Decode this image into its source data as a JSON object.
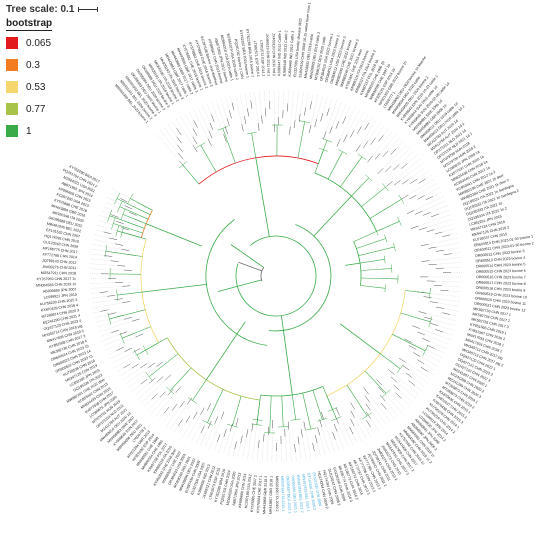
{
  "scale": {
    "label": "Tree scale: 0.1"
  },
  "legend": {
    "title": "bootstrap",
    "items": [
      {
        "label": "0.065",
        "color": "#e31a1c"
      },
      {
        "label": "0.3",
        "color": "#f47b20"
      },
      {
        "label": "0.53",
        "color": "#f5d76e"
      },
      {
        "label": "0.77",
        "color": "#a8c34a"
      },
      {
        "label": "1",
        "color": "#3aab48"
      }
    ]
  },
  "tree": {
    "branch_color": "#3aab48",
    "highlight_color": "#3da9e0",
    "labels": [
      "MW491930 BEL 2020 bovine 1",
      "MW491931 BEL 2020 bovine 2",
      "MW491932 BEL 2020 bovine 3",
      "OK095683 DEU 2020 bovine 1",
      "OK095684 DEU 2020 bovine 2",
      "OK095685 DEU 2020 bovine 3",
      "MK920191 ITA 2018 bovine 1",
      "MK920192 ITA 2018 bovine 2",
      "MK920193 ITA 2018 bovine 3",
      "MH443864 GBR 2017 cattle 1",
      "MH443865 GBR 2017 cattle 2",
      "MH443866 GBR 2017 cattle 3",
      "KY576881 CHE 2016 bovine 1",
      "KY576882 CHE 2016 bovine 2",
      "KY576883 CHE 2016 bovine 3",
      "KC297198 Bovine viral diarrhea",
      "KF896607 CHN 2013 bovine",
      "AB871953 JPN 2012 bovine",
      "MZ664318 USA 2019 cattle 1",
      "MZ664319 USA 2019 cattle 2",
      "PQ291702 bovine 2 CHN",
      "KY762287 BRA 2015 bovine 1",
      "KY762288 BRA 2015 bovine 2",
      "LT902571 ESP 2014 1",
      "LT902572 ESP 2014 2",
      "JX469119 CHN 2011 Ind 1",
      "JX469120 CHN 2011 Ind 2",
      "KJ689447 IND 2012 Cattle 1",
      "KJ689448 IND 2012 Cattle 2",
      "KJ689449 IND 2012 Cattle 3",
      "EU327505 USA border disease 4623",
      "EU697429 CHN 2008 10-15 swine fever virus 1",
      "MN428892 DEU 2019 cattle",
      "MN428893 DEU 2019 cattle 2",
      "MT858102 DEU 2020 cattle",
      "OR384010 USA 2022 bovine 1",
      "OR384011 USA 2022 bovine 2",
      "OR384012 USA 2022 bovine 3",
      "MW883245 CHE 2021 bovine",
      "MW883246 CHE 2021 bovine 2",
      "KT951841 CHE 2015 deer",
      "KR866116 ITA 2014 bovine",
      "KR866117 ITA 2014 bovine 2",
      "KX987157 POL 2016 1b",
      "MH806543 CHE 1995 1b",
      "MN938590 CHE 1997 1b",
      "KF925191 ESP 2013 1b",
      "KF501393 GBR 2012 bovine 1h",
      "LT600777 1",
      "MW459003 DEU 2020 bovine 1h Marche",
      "MW459004 DEU 2020 cattle",
      "MW459005 DEU 2020 bovine 2",
      "KY849643 SVN 2015-10-23 cattle 1",
      "KY849644 SVN 2015 cattle 1d",
      "KY849645 SVN 2016-02-09 cattle 1d",
      "MW458981 SWE 2006 1d",
      "MW458982 GBR 2006 1d",
      "MW459012 DEU 2019 cattle 1d",
      "MW459013 DEU 2019 cattle 1d 2",
      "MZ412783 AUT 2020 1d",
      "MZ412784 AUT 2020 1d 2",
      "OP373331 NLD 2021 1d",
      "OP373332 NLD 2021 1d 2",
      "MT079789 HUN 2018",
      "MT079790 HUN 2018 2",
      "LC089875 JPN 1999 1a",
      "KX577637 CHN 2016 1a",
      "MN824438 CHN 2018 1a",
      "KC853440 CHN 2012 1a",
      "KC853441 CHN 2012 1a 2",
      "MW882199 CHE 2021 1k deer",
      "MW882200 CHE 2021 1k deer 2",
      "OQ195331 ITA 2022 1e Sardegna",
      "OQ195332 ITA 2022 1e Sardegna 2",
      "OQ195333 ITA 2022 1e",
      "OQ195334 ITA 2022 1e 2",
      "LC852291 JPN 2015",
      "MK947124 CHN 2018",
      "MK947125 CHN 2018 2",
      "KU726537 CHN 2015",
      "OR600510 CHN 2023-01-30 bovine 1",
      "OR600511 CHN 2023-01-30 bovine 2",
      "OR600512 CHN 2023 bovine 3",
      "OR600513 CHN 2023 bovine 4",
      "OR600514 CHN 2023 bovine 5",
      "OR600515 CHN 2023 bovine 6",
      "OR600516 CHN 2023 bovine 7",
      "OR600517 CHN 2023 bovine 8",
      "OR600518 CHN 2023 bovine 9",
      "OR600519 CHN 2023 bovine 10",
      "OR600520 CHN 2023 bovine 11",
      "OR600521 CHN 2023 bovine 12",
      "MK592733 CHN 2017 1",
      "MK592734 CHN 2017 2",
      "MK592735 CHN 2017 3",
      "KY851566 CHN 2016 1",
      "KY851567 CHN 2016 2",
      "MN417933 CHN 2018 1",
      "MN417934 CHN 2018 2",
      "MH345712 CHN 2017 pig",
      "MH345713 CHN 2017 pig 2",
      "OQ427120 CHN 2022 1",
      "OQ427121 CHN 2022 2",
      "OQ427122 CHN 2022 3",
      "MZ241287 CHN 2020 1",
      "MZ241288 CHN 2020 2",
      "MZ241289 CHN 2020 3",
      "MT269872 CHN 2019 1",
      "MT269873 CHN 2019 2",
      "KX870436 CHN 2015 1",
      "KX870437 CHN 2015 2",
      "KX870438 CHN 2015 3",
      "KU756228 CHN 2014 1",
      "KU756229 CHN 2014 2",
      "LC099919 JPN 2014",
      "LC099920 JPN 2014 2",
      "AB300691 JPN 2006",
      "AB300692 JPN 2006 2",
      "MN064581 CHN 2018 1c",
      "MN064582 CHN 2018 1c 2",
      "KY767958 CHN 2016 1c",
      "MG547908 CHN 2017",
      "MG547909 CHN 2017 2",
      "MG547910 CHN 2017 3",
      "JN400273 CHN 2010",
      "JN400274 CHN 2010 2",
      "JQ799141 CHN 2011",
      "JQ799142 CHN 2011 2",
      "KF772785 CHN 2013 1",
      "KF772786 CHN 2013 2",
      "KF772787 CHN 2013 3",
      "MF166772 CHN 2016",
      "MF166773 CHN 2016 2",
      "MF166774 CHN 2016 3",
      "GU120246 CHN 2008",
      "GU120247 CHN 2008 2",
      "HQ174293 CHN 2009",
      "HQ174294 CHN 2009 2",
      "EF101530 CHN 2006",
      "EF101531 CHN 2006 2",
      "MW491933 BEL 2021 1",
      "MW491934 BEL 2021 2",
      "OK095686 DEU 2021 1",
      "OK095687 DEU 2021 2",
      "MK920194 ITA 2019 1",
      "MK920195 ITA 2019 2",
      "MH443867 GBR 2018 1",
      "MH443868 GBR 2018 2",
      "KY576884 CHE 2017 1",
      "KY576885 CHE 2017 2",
      "KC297199 USA 2012",
      "KF896608 CHN 2014",
      "AB871954 JPN 2013",
      "MZ664320 USA 2020",
      "PQ291703 CHN 2024",
      "KY762289 BRA 2016",
      "LT902573 ESP 2015",
      "JX469121 CHN 2012",
      "KJ689450 IND 2013",
      "EU327506 USA 2007",
      "EU697430 CHN 2009",
      "MN428894 DEU 2020",
      "MT858103 DEU 2021",
      "OR384013 USA 2023",
      "MW883247 CHE 2022",
      "KT951842 CHE 2016 deer",
      "KR866118 ITA 2015",
      "KX987158 POL 2017",
      "MH806544 CHE 1996",
      "MN938591 CHE 1998",
      "KF925192 ESP 2014",
      "KF501394 GBR 2013",
      "LT600778 2",
      "MW459006 DEU 2021",
      "KY849646 SVN 2017",
      "MW458983 SWE 2007",
      "MW459014 DEU 2020 1d",
      "MZ412785 AUT 2021",
      "OP373333 NLD 2022",
      "MT079791 HUN 2019",
      "LC089876 JPN 2000",
      "KX577638 CHN 2017",
      "MN824439 CHN 2019",
      "KC853442 CHN 2013",
      "MW882201 CHE 2022 deer",
      "OQ195335 ITA 2023",
      "LC852292 JPN 2016",
      "MK947126 CHN 2019",
      "KU726538 CHN 2016",
      "OR600522 CHN 2023 13",
      "OR600523 CHN 2023 14",
      "OR600524 CHN 2023 15",
      "MK592736 CHN 2018 4",
      "KY851568 CHN 2017 3",
      "MN417935 CHN 2019 3",
      "MH345714 CHN 2018 pig",
      "OQ427123 CHN 2023 4",
      "MZ241290 CHN 2021 4",
      "MT269874 CHN 2020 3",
      "KX870439 CHN 2016 4",
      "KU756230 CHN 2015 3",
      "LC099921 JPN 2015",
      "AB300693 JPN 2007",
      "MN064583 CHN 2019 1c",
      "KY767959 CHN 2017 1c",
      "MG547911 CHN 2018",
      "JN400275 CHN 2011",
      "JQ799143 CHN 2012",
      "KF772788 CHN 2014",
      "MF166775 CHN 2017",
      "GU120248 CHN 2009",
      "HQ174295 CHN 2010",
      "EF101532 CHN 2007",
      "MW491935 BEL 2022",
      "OK095688 DEU 2022",
      "MK920196 ITA 2020",
      "MH443869 GBR 2019",
      "KY576886 CHE 2018",
      "KC297200 USA 2013",
      "KF896609 CHN 2015",
      "AB871955 JPN 2014",
      "MZ664321 USA 2021",
      "PQ291704 CHN 2024 2",
      "KY762290 BRA 2017"
    ]
  }
}
